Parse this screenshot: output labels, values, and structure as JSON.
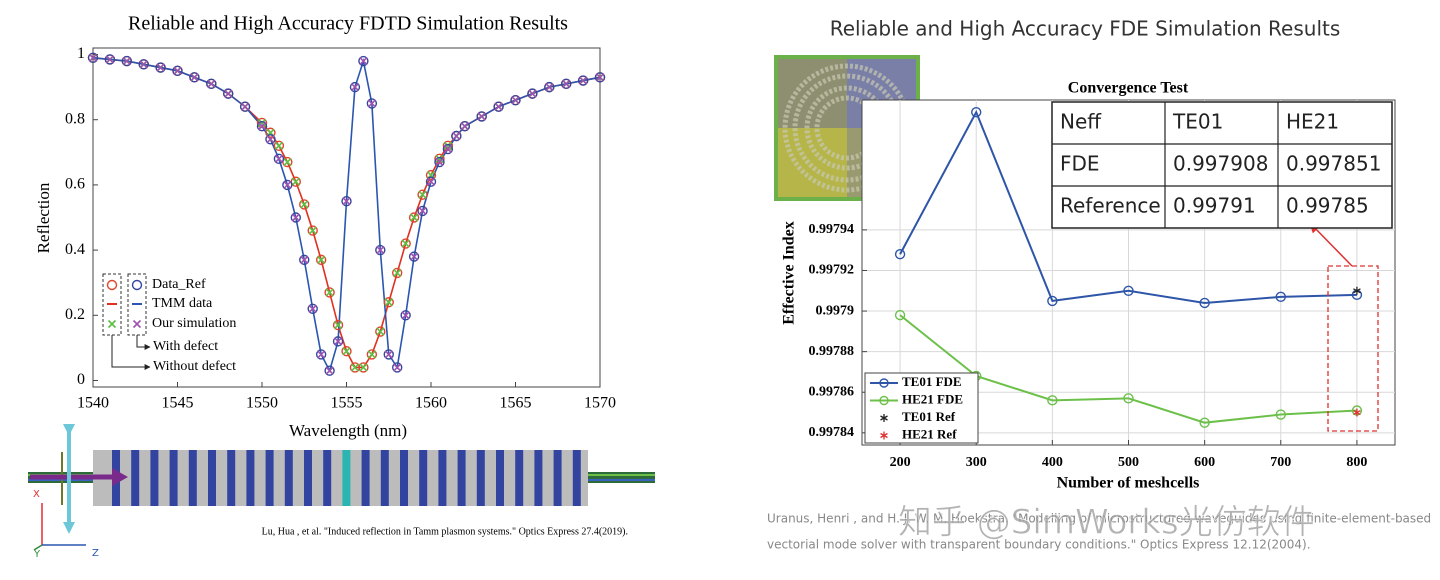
{
  "chart_data": [
    {
      "type": "line",
      "title": "Reliable and High Accuracy FDTD Simulation Results",
      "x_label": "Wavelength (nm)",
      "y_label": "Reflection",
      "x": [
        1540,
        1541,
        1542,
        1543,
        1544,
        1545,
        1546,
        1547,
        1548,
        1549,
        1550,
        1550.5,
        1551,
        1551.5,
        1552,
        1552.5,
        1553,
        1553.5,
        1554,
        1554.5,
        1555,
        1555.5,
        1556,
        1556.5,
        1557,
        1557.5,
        1558,
        1558.5,
        1559,
        1559.5,
        1560,
        1560.5,
        1561,
        1561.5,
        1562,
        1563,
        1564,
        1565,
        1566,
        1567,
        1568,
        1569,
        1570
      ],
      "methods": [
        "Data_Ref",
        "TMM data",
        "Our simulation"
      ],
      "method_markers": [
        "circle",
        "line",
        "cross"
      ],
      "series": [
        {
          "name": "With defect",
          "colors": [
            "#34479c",
            "#2b56b0",
            "#a052b0"
          ],
          "values": [
            0.99,
            0.985,
            0.98,
            0.97,
            0.96,
            0.95,
            0.93,
            0.91,
            0.88,
            0.84,
            0.78,
            0.74,
            0.68,
            0.6,
            0.5,
            0.37,
            0.22,
            0.08,
            0.03,
            0.12,
            0.55,
            0.9,
            0.98,
            0.85,
            0.4,
            0.08,
            0.04,
            0.2,
            0.38,
            0.52,
            0.61,
            0.67,
            0.71,
            0.75,
            0.78,
            0.81,
            0.84,
            0.86,
            0.88,
            0.9,
            0.91,
            0.92,
            0.93
          ]
        },
        {
          "name": "Without defect",
          "colors": [
            "#e0452c",
            "#e03020",
            "#5cc044"
          ],
          "values": [
            0.99,
            0.985,
            0.98,
            0.97,
            0.96,
            0.95,
            0.93,
            0.91,
            0.88,
            0.84,
            0.79,
            0.76,
            0.72,
            0.67,
            0.61,
            0.54,
            0.46,
            0.37,
            0.27,
            0.17,
            0.09,
            0.04,
            0.04,
            0.08,
            0.15,
            0.24,
            0.33,
            0.42,
            0.5,
            0.57,
            0.63,
            0.68,
            0.72,
            0.75,
            0.78,
            0.81,
            0.84,
            0.86,
            0.88,
            0.9,
            0.91,
            0.92,
            0.93
          ]
        }
      ],
      "xlim": [
        1540,
        1570
      ],
      "xticks": [
        1540,
        1545,
        1550,
        1555,
        1560,
        1565,
        1570
      ],
      "ylim": [
        -0.02,
        1.02
      ],
      "yticks": [
        0,
        0.2,
        0.4,
        0.6,
        0.8,
        1
      ],
      "grid": false
    },
    {
      "type": "line",
      "title": "Reliable and High Accuracy FDE Simulation Results",
      "subtitle": "Convergence Test",
      "x_label": "Number of meshcells",
      "y_label": "Effective Index",
      "x": [
        200,
        300,
        400,
        500,
        600,
        700,
        800
      ],
      "series": [
        {
          "name": "TE01 FDE",
          "color": "#2e55a8",
          "marker": "circle",
          "line": true,
          "values": [
            0.997928,
            0.997998,
            0.997905,
            0.99791,
            0.997904,
            0.997907,
            0.997908
          ]
        },
        {
          "name": "HE21 FDE",
          "color": "#6cc04a",
          "marker": "circle",
          "line": true,
          "values": [
            0.997898,
            0.997868,
            0.997856,
            0.997857,
            0.997845,
            0.997849,
            0.997851
          ]
        },
        {
          "name": "TE01 Ref",
          "color": "#222222",
          "marker": "star",
          "line": false,
          "values": [
            null,
            null,
            null,
            null,
            null,
            null,
            0.99791
          ]
        },
        {
          "name": "HE21 Ref",
          "color": "#e03030",
          "marker": "star",
          "line": false,
          "values": [
            null,
            null,
            null,
            null,
            null,
            null,
            0.99785
          ]
        }
      ],
      "xlim": [
        150,
        850
      ],
      "xticks": [
        200,
        300,
        400,
        500,
        600,
        700,
        800
      ],
      "ylim": [
        0.997834,
        0.998004
      ],
      "yticks": [
        0.99784,
        0.99786,
        0.99788,
        0.9979,
        0.99792,
        0.99794
      ],
      "grid": true,
      "legend": "lower left",
      "table": {
        "rows": [
          [
            "Neff",
            "TE01",
            "HE21"
          ],
          [
            "FDE",
            "0.997908",
            "0.997851"
          ],
          [
            "Reference",
            "0.99791",
            "0.99785"
          ]
        ]
      }
    }
  ],
  "schematic": {
    "axes": [
      "X",
      "Y",
      "Z"
    ],
    "citation": "Lu, Hua , et al. \"Induced reflection in Tamm plasmon systems.\" Optics Express 27.4(2019)."
  },
  "reference": {
    "lines": [
      "Uranus, Henri , and H. J. W. M. Hoekstra. \"Modelling of microstructured waveguides using finite-element-based",
      "vectorial mode solver with transparent boundary conditions.\" Optics Express 12.12(2004)."
    ]
  },
  "watermark": "知乎 @SimWorks光仿软件"
}
